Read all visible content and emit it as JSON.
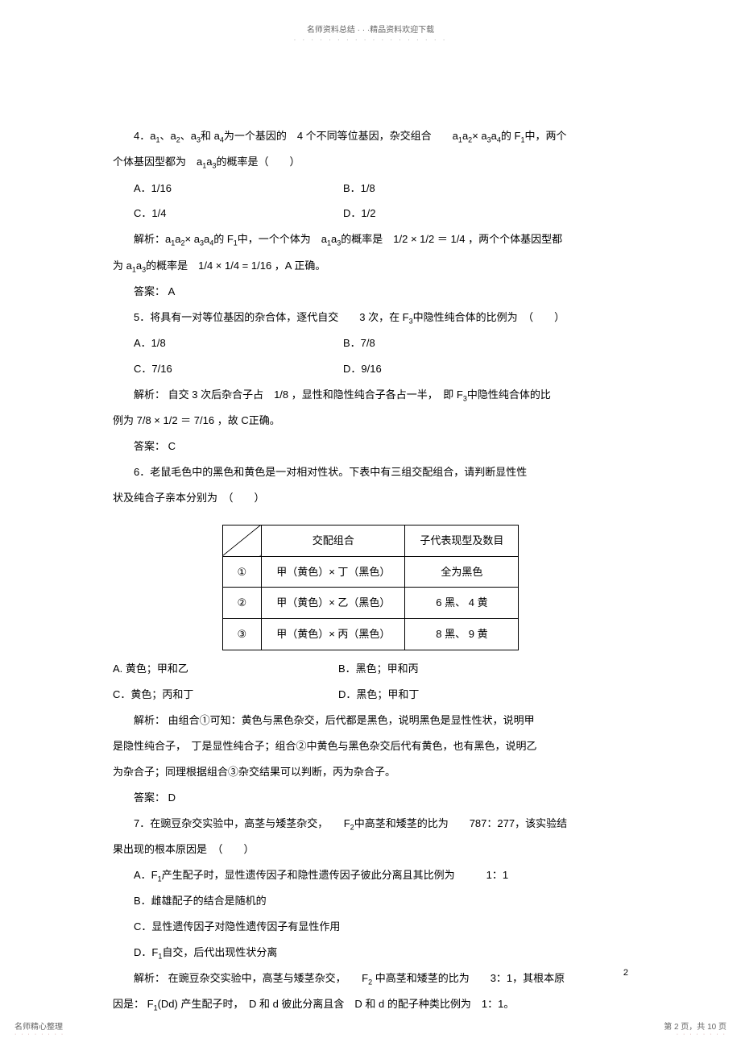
{
  "header": {
    "title": "名师资料总结 · · ·精品资料欢迎下载",
    "dots": "· · · · · · · · · · · · · · · · · ·"
  },
  "q4": {
    "stem_pre": "4．a",
    "stem_mid1": "、a",
    "stem_mid2": "、a",
    "stem_mid3": "和 a",
    "stem_mid4": "为一个基因的　4 个不同等位基因，杂交组合　　a",
    "stem_mid5": "a",
    "stem_mid6": "× a",
    "stem_mid7": "a",
    "stem_mid8": "的 F",
    "stem_mid9": "中，两个",
    "stem_line2_pre": "个体基因型都为　a",
    "stem_line2_mid": "a",
    "stem_line2_post": "的概率是（　　）",
    "optA": "A．1/16",
    "optB": "B．1/8",
    "optC": "C．1/4",
    "optD": "D．1/2",
    "exp_pre": "解析：a",
    "exp_1": "a",
    "exp_2": "× a",
    "exp_3": "a",
    "exp_4": "的 F",
    "exp_5": "中，一个个体为　a",
    "exp_6": "a",
    "exp_7": "的概率是　1/2 × 1/2 ＝ 1/4 ，两个个体基因型都",
    "exp_line2_pre": "为 a",
    "exp_line2_mid": "a",
    "exp_line2_post": "的概率是　1/4 × 1/4 = 1/16 ，A 正确。",
    "ans": "答案： A"
  },
  "q5": {
    "stem": "5．将具有一对等位基因的杂合体，逐代自交　　3 次，在 F",
    "stem_post": "中隐性纯合体的比例为　（　　）",
    "optA": "A．1/8",
    "optB": "B．7/8",
    "optC": "C．7/16",
    "optD": "D．9/16",
    "exp_pre": "解析： 自交 3 次后杂合子占　1/8 ，显性和隐性纯合子各占一半，　即 F",
    "exp_post": "中隐性纯合体的比",
    "exp_line2": "例为 7/8 × 1/2 ＝ 7/16 ，故 C正确。",
    "ans": "答案： C"
  },
  "q6": {
    "stem1": "6．老鼠毛色中的黑色和黄色是一对相对性状。下表中有三组交配组合，请判断显性性",
    "stem2": "状及纯合子亲本分别为　（　　）",
    "th1": "交配组合",
    "th2": "子代表现型及数目",
    "r1c1": "①",
    "r1c2": "甲（黄色）× 丁（黑色）",
    "r1c3": "全为黑色",
    "r2c1": "②",
    "r2c2": "甲（黄色）× 乙（黑色）",
    "r2c3": "6 黑、 4 黄",
    "r3c1": "③",
    "r3c2": "甲（黄色）× 丙（黑色）",
    "r3c3": "8 黑、 9 黄",
    "optA": "A. 黄色；甲和乙",
    "optB": "B．黑色；甲和丙",
    "optC": "C．黄色；丙和丁",
    "optD": "D．黑色；甲和丁",
    "exp1": "解析： 由组合①可知：黄色与黑色杂交，后代都是黑色，说明黑色是显性性状，说明甲",
    "exp2": "是隐性纯合子，　丁是显性纯合子；组合②中黄色与黑色杂交后代有黄色，也有黑色，说明乙",
    "exp3": "为杂合子；同理根据组合③杂交结果可以判断，丙为杂合子。",
    "ans": "答案： D"
  },
  "q7": {
    "stem_pre": "7．在豌豆杂交实验中，高茎与矮茎杂交，　　F",
    "stem_post": "中高茎和矮茎的比为　　787：277，该实验结",
    "stem2": "果出现的根本原因是　（　　）",
    "optA_pre": "A．F",
    "optA_post": "产生配子时，显性遗传因子和隐性遗传因子彼此分离且其比例为　　　1：1",
    "optB": "B．雌雄配子的结合是随机的",
    "optC": "C．显性遗传因子对隐性遗传因子有显性作用",
    "optD_pre": "D．F",
    "optD_post": "自交，后代出现性状分离",
    "exp_pre": "解析： 在豌豆杂交实验中，高茎与矮茎杂交，　　F",
    "exp_post": " 中高茎和矮茎的比为　　3：1，其根本原",
    "exp2_pre": "因是： F",
    "exp2_post": "(Dd) 产生配子时，　D 和 d 彼此分离且含　D 和 d 的配子种类比例为　1：1。"
  },
  "pagenum": "2",
  "footer": {
    "left": "名师精心整理",
    "right": "第 2 页，共 10 页",
    "dots": "· · · · · · · ·"
  },
  "subs": {
    "s1": "1",
    "s2": "2",
    "s3": "3",
    "s4": "4"
  }
}
